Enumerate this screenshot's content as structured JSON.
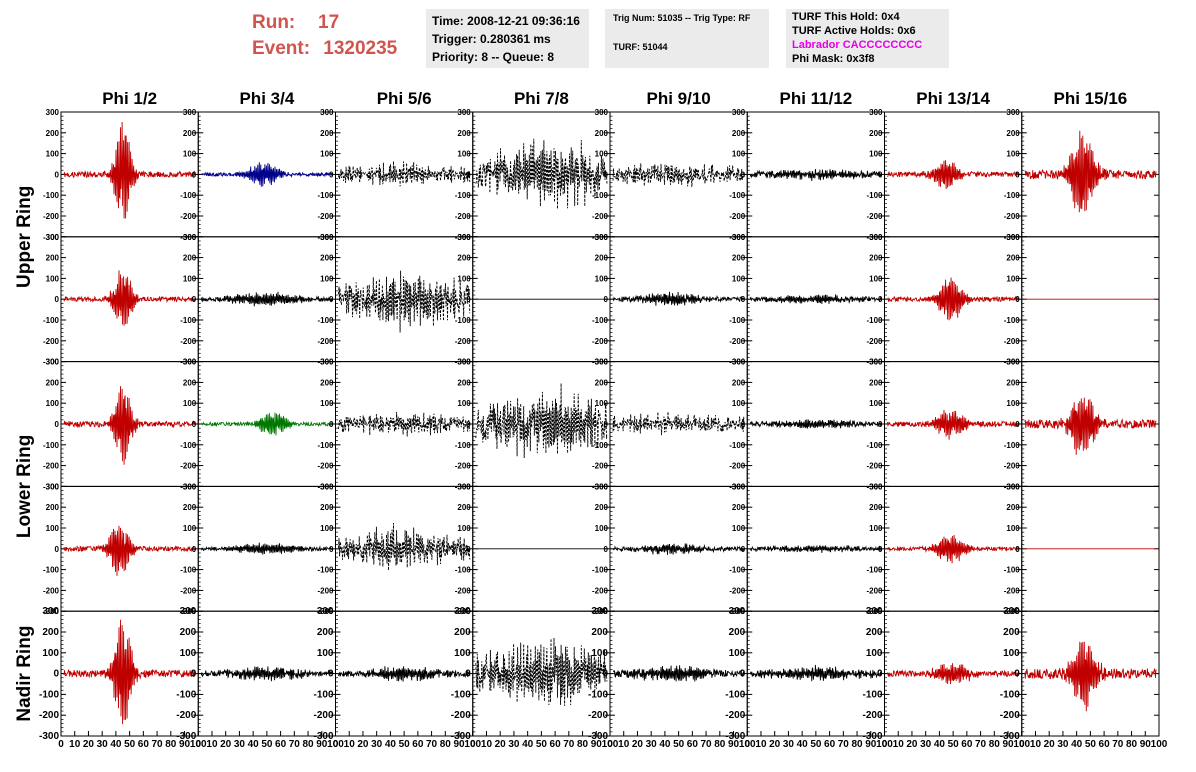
{
  "header": {
    "run_label": "Run:",
    "run_value": "17",
    "event_label": "Event:",
    "event_value": "1320235",
    "time": "Time: 2008-12-21 09:36:16",
    "trigger": "Trigger: 0.280361 ms",
    "priority": "Priority: 8 -- Queue: 8",
    "trig_num": "Trig Num: 51035 -- Trig Type: RF",
    "turf": "TURF: 51044",
    "turf_hold": "TURF This Hold: 0x4",
    "turf_active": "TURF Active Holds: 0x6",
    "labrador": "Labrador CACCCCCCCC",
    "phi_mask": "Phi Mask: 0x3f8"
  },
  "colors": {
    "run_text": "#d0554f",
    "labrador_text": "#e600e6",
    "info_background": "#ebebeb",
    "trace_red": "#c00000",
    "trace_blue": "#00008b",
    "trace_green": "#007800",
    "trace_black": "#000000"
  },
  "chart_data": {
    "type": "line",
    "columns": [
      "Phi 1/2",
      "Phi 3/4",
      "Phi 5/6",
      "Phi 7/8",
      "Phi 9/10",
      "Phi 11/12",
      "Phi 13/14",
      "Phi 15/16"
    ],
    "row_groups": [
      "Upper Ring",
      "Lower Ring",
      "Nadir Ring"
    ],
    "rows_per_group": [
      2,
      2,
      1
    ],
    "x_ticks": [
      "0",
      "10",
      "20",
      "30",
      "40",
      "50",
      "60",
      "70",
      "80",
      "90",
      "100"
    ],
    "xlim": [
      0,
      100
    ],
    "y_ticks": [
      "-300",
      "-200",
      "-100",
      "0",
      "100",
      "200",
      "300"
    ],
    "ylim": [
      -300,
      300
    ],
    "grid": false,
    "panel_styles": [
      [
        "red",
        "blue",
        "black-dashed",
        "black-dashed",
        "black-dashed",
        "black",
        "red",
        "red"
      ],
      [
        "red",
        "black",
        "black-dashed",
        "black-flat",
        "black",
        "black",
        "red",
        "red-flat"
      ],
      [
        "red",
        "green",
        "black-dashed",
        "black-dashed",
        "black-dashed",
        "black",
        "red",
        "red"
      ],
      [
        "red",
        "black",
        "black-dashed",
        "black-flat",
        "black",
        "black",
        "red",
        "red-flat"
      ],
      [
        "red",
        "black",
        "black",
        "black-dashed",
        "black",
        "black",
        "red",
        "red"
      ]
    ],
    "panel_traces": [
      [
        {
          "center": 45,
          "width": 7,
          "peak": 265,
          "noise": 20
        },
        {
          "center": 47,
          "width": 12,
          "peak": 65,
          "noise": 12
        },
        {
          "center": 50,
          "width": 30,
          "peak": 40,
          "noise": 30
        },
        {
          "center": 55,
          "width": 40,
          "peak": 120,
          "noise": 70
        },
        {
          "center": 45,
          "width": 30,
          "peak": 30,
          "noise": 35
        },
        {
          "center": 50,
          "width": 40,
          "peak": 20,
          "noise": 18
        },
        {
          "center": 45,
          "width": 10,
          "peak": 75,
          "noise": 18
        },
        {
          "center": 44,
          "width": 10,
          "peak": 220,
          "noise": 30
        }
      ],
      [
        {
          "center": 45,
          "width": 8,
          "peak": 160,
          "noise": 16
        },
        {
          "center": 50,
          "width": 30,
          "peak": 30,
          "noise": 12
        },
        {
          "center": 55,
          "width": 35,
          "peak": 100,
          "noise": 60
        },
        {
          "center": 50,
          "width": 40,
          "peak": 0,
          "noise": 0
        },
        {
          "center": 45,
          "width": 25,
          "peak": 30,
          "noise": 15
        },
        {
          "center": 50,
          "width": 40,
          "peak": 18,
          "noise": 14
        },
        {
          "center": 48,
          "width": 10,
          "peak": 110,
          "noise": 15
        },
        {
          "center": 50,
          "width": 40,
          "peak": 0,
          "noise": 0
        }
      ],
      [
        {
          "center": 45,
          "width": 7,
          "peak": 220,
          "noise": 20
        },
        {
          "center": 55,
          "width": 12,
          "peak": 60,
          "noise": 12
        },
        {
          "center": 50,
          "width": 30,
          "peak": 35,
          "noise": 30
        },
        {
          "center": 55,
          "width": 40,
          "peak": 120,
          "noise": 70
        },
        {
          "center": 45,
          "width": 30,
          "peak": 30,
          "noise": 30
        },
        {
          "center": 50,
          "width": 40,
          "peak": 18,
          "noise": 14
        },
        {
          "center": 48,
          "width": 12,
          "peak": 70,
          "noise": 18
        },
        {
          "center": 44,
          "width": 10,
          "peak": 170,
          "noise": 30
        }
      ],
      [
        {
          "center": 42,
          "width": 9,
          "peak": 140,
          "noise": 16
        },
        {
          "center": 50,
          "width": 30,
          "peak": 25,
          "noise": 10
        },
        {
          "center": 45,
          "width": 30,
          "peak": 80,
          "noise": 45
        },
        {
          "center": 50,
          "width": 40,
          "peak": 0,
          "noise": 0
        },
        {
          "center": 45,
          "width": 25,
          "peak": 25,
          "noise": 15
        },
        {
          "center": 50,
          "width": 40,
          "peak": 14,
          "noise": 12
        },
        {
          "center": 48,
          "width": 12,
          "peak": 75,
          "noise": 12
        },
        {
          "center": 50,
          "width": 40,
          "peak": 0,
          "noise": 0
        }
      ],
      [
        {
          "center": 45,
          "width": 7,
          "peak": 300,
          "noise": 25
        },
        {
          "center": 50,
          "width": 30,
          "peak": 30,
          "noise": 18
        },
        {
          "center": 50,
          "width": 30,
          "peak": 30,
          "noise": 20
        },
        {
          "center": 55,
          "width": 40,
          "peak": 120,
          "noise": 70
        },
        {
          "center": 45,
          "width": 30,
          "peak": 35,
          "noise": 22
        },
        {
          "center": 50,
          "width": 40,
          "peak": 30,
          "noise": 20
        },
        {
          "center": 50,
          "width": 14,
          "peak": 55,
          "noise": 20
        },
        {
          "center": 45,
          "width": 10,
          "peak": 180,
          "noise": 35
        }
      ]
    ]
  }
}
